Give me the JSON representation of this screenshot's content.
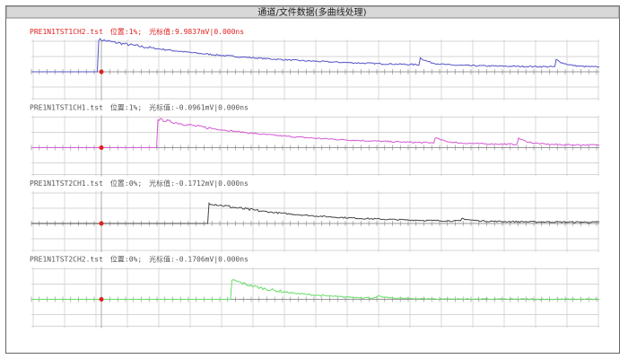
{
  "window": {
    "title": "通道/文件数据(多曲线处理)"
  },
  "panels": [
    {
      "file": "PRE1N1TST1CH2.tst",
      "position": "位置:1%;",
      "cursor": "光标值:9.9837mV|0.000ns"
    },
    {
      "file": "PRE1N1TST1CH1.tst",
      "position": "位置:1%;",
      "cursor": "光标值:-0.0961mV|0.000ns"
    },
    {
      "file": "PRE1N1TST2CH1.tst",
      "position": "位置:0%;",
      "cursor": "光标值:-0.1712mV|0.000ns"
    },
    {
      "file": "PRE1N1TST2CH2.tst",
      "position": "位置:0%;",
      "cursor": "光标值:-0.1706mV|0.000ns"
    }
  ]
}
